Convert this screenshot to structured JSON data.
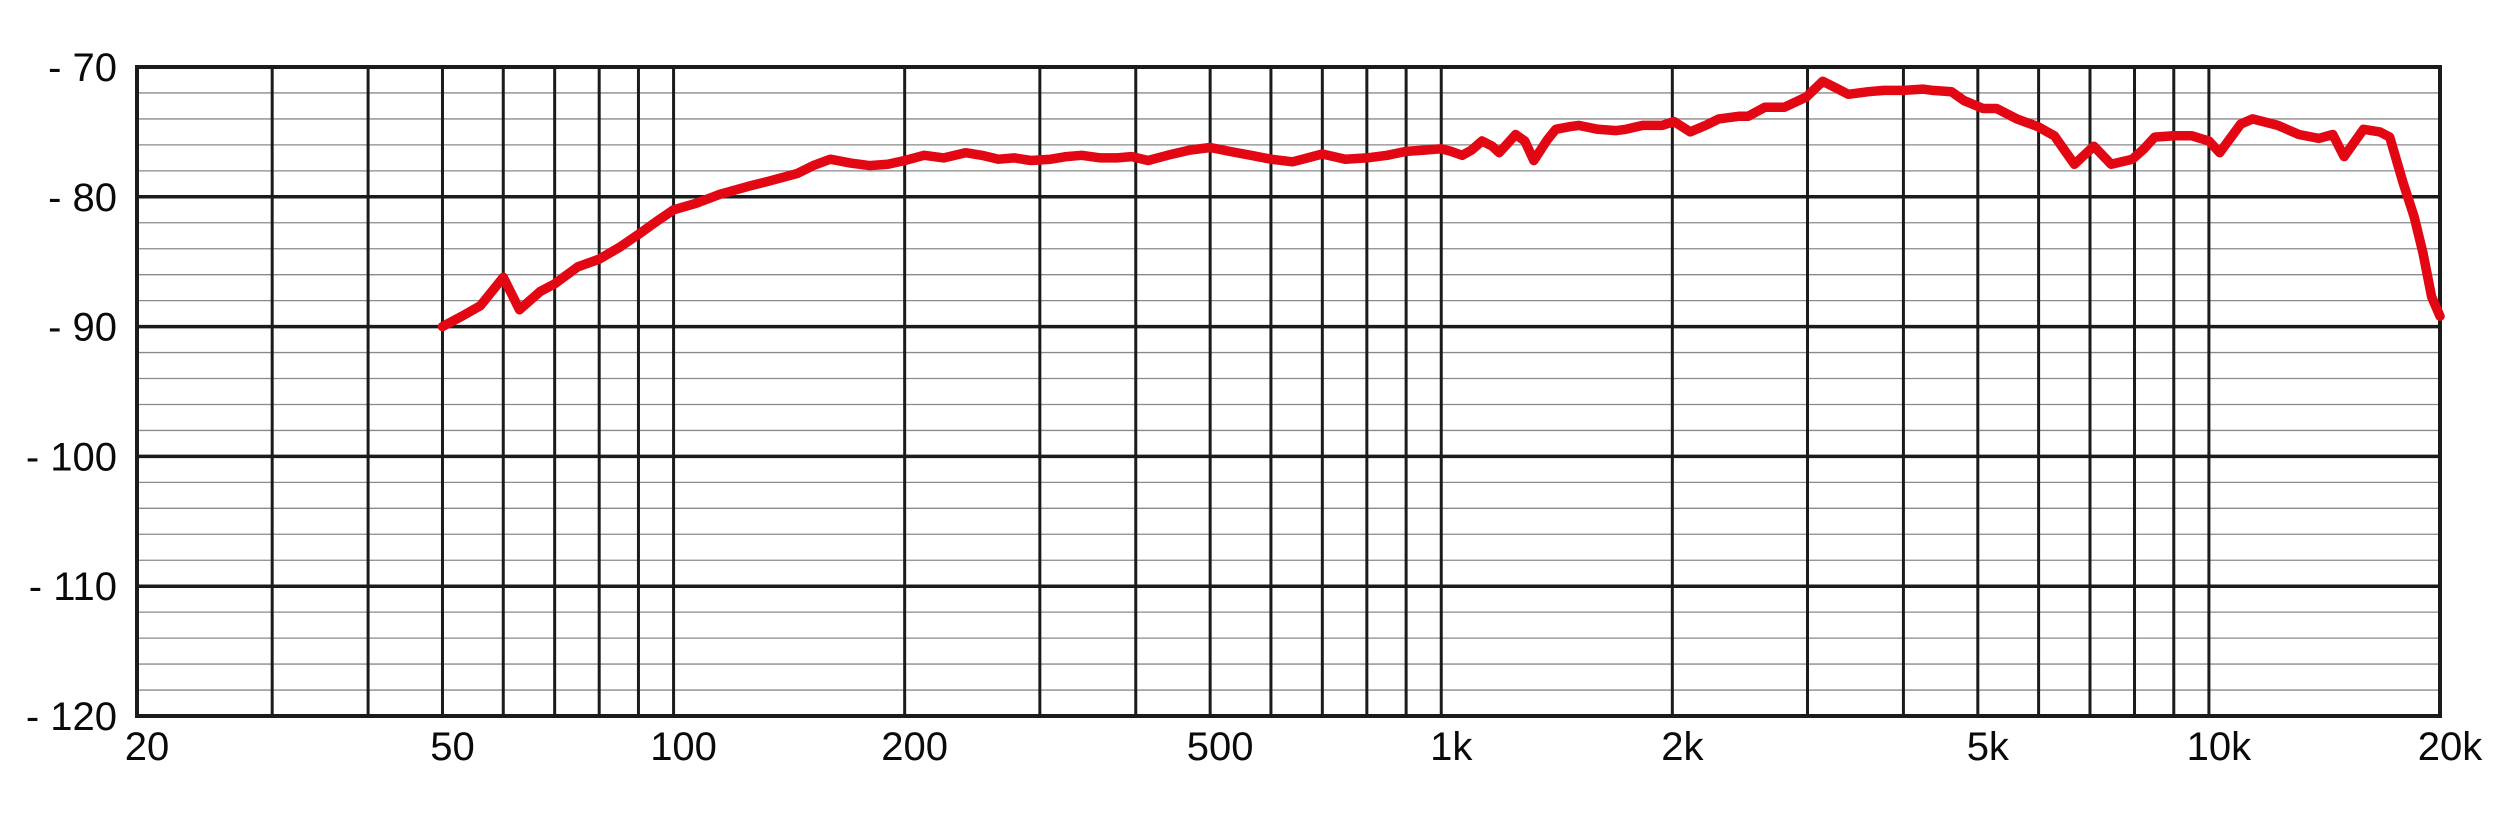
{
  "chart_data": {
    "type": "line",
    "title": "",
    "grid": "on",
    "legend": "none",
    "colors": {
      "background": "#ffffff",
      "curve": "#e30613",
      "grid_major": "#1b1b1b",
      "grid_minor": "#8a8a8a",
      "border": "#1b1b1b",
      "text": "#0a0a0a"
    },
    "x_axis": {
      "scale": "log",
      "min": 20,
      "max": 20000,
      "gridlines": [
        30,
        40,
        50,
        60,
        70,
        80,
        90,
        100,
        200,
        300,
        400,
        500,
        600,
        700,
        800,
        900,
        1000,
        2000,
        3000,
        4000,
        5000,
        6000,
        7000,
        8000,
        9000,
        10000
      ],
      "labeled_ticks": [
        {
          "value": 20,
          "label": "20"
        },
        {
          "value": 50,
          "label": "50"
        },
        {
          "value": 100,
          "label": "100"
        },
        {
          "value": 200,
          "label": "200"
        },
        {
          "value": 500,
          "label": "500"
        },
        {
          "value": 1000,
          "label": "1k"
        },
        {
          "value": 2000,
          "label": "2k"
        },
        {
          "value": 5000,
          "label": "5k"
        },
        {
          "value": 10000,
          "label": "10k"
        },
        {
          "value": 20000,
          "label": "20k"
        }
      ]
    },
    "y_axis": {
      "min": -120,
      "max": -70,
      "major_step": 10,
      "minor_step": 2,
      "labeled_ticks": [
        {
          "value": -70,
          "label": "- 70"
        },
        {
          "value": -80,
          "label": "- 80"
        },
        {
          "value": -90,
          "label": "- 90"
        },
        {
          "value": -100,
          "label": "- 100"
        },
        {
          "value": -110,
          "label": "- 110"
        },
        {
          "value": -120,
          "label": "- 120"
        }
      ]
    },
    "series": [
      {
        "name": "frequency-response",
        "color": "#e30613",
        "stroke_width": 9.5,
        "points": [
          [
            50,
            -90.0
          ],
          [
            53,
            -89.2
          ],
          [
            56,
            -88.4
          ],
          [
            60,
            -86.2
          ],
          [
            63,
            -88.7
          ],
          [
            67,
            -87.3
          ],
          [
            70,
            -86.7
          ],
          [
            75,
            -85.4
          ],
          [
            80,
            -84.8
          ],
          [
            85,
            -83.9
          ],
          [
            90,
            -82.9
          ],
          [
            95,
            -81.9
          ],
          [
            100,
            -81.0
          ],
          [
            107,
            -80.5
          ],
          [
            115,
            -79.8
          ],
          [
            125,
            -79.2
          ],
          [
            133,
            -78.8
          ],
          [
            145,
            -78.2
          ],
          [
            152,
            -77.6
          ],
          [
            160,
            -77.1
          ],
          [
            170,
            -77.4
          ],
          [
            180,
            -77.6
          ],
          [
            190,
            -77.5
          ],
          [
            200,
            -77.2
          ],
          [
            212,
            -76.8
          ],
          [
            225,
            -77.0
          ],
          [
            240,
            -76.6
          ],
          [
            252,
            -76.8
          ],
          [
            265,
            -77.1
          ],
          [
            278,
            -77.0
          ],
          [
            292,
            -77.2
          ],
          [
            310,
            -77.1
          ],
          [
            325,
            -76.9
          ],
          [
            340,
            -76.8
          ],
          [
            360,
            -77.0
          ],
          [
            378,
            -77.0
          ],
          [
            395,
            -76.9
          ],
          [
            415,
            -77.2
          ],
          [
            440,
            -76.8
          ],
          [
            470,
            -76.4
          ],
          [
            500,
            -76.2
          ],
          [
            530,
            -76.5
          ],
          [
            565,
            -76.8
          ],
          [
            600,
            -77.1
          ],
          [
            640,
            -77.3
          ],
          [
            670,
            -77.0
          ],
          [
            700,
            -76.7
          ],
          [
            750,
            -77.1
          ],
          [
            800,
            -77.0
          ],
          [
            850,
            -76.8
          ],
          [
            900,
            -76.5
          ],
          [
            950,
            -76.4
          ],
          [
            1000,
            -76.3
          ],
          [
            1030,
            -76.5
          ],
          [
            1065,
            -76.8
          ],
          [
            1095,
            -76.4
          ],
          [
            1130,
            -75.7
          ],
          [
            1165,
            -76.1
          ],
          [
            1190,
            -76.6
          ],
          [
            1220,
            -75.9
          ],
          [
            1250,
            -75.2
          ],
          [
            1285,
            -75.7
          ],
          [
            1320,
            -77.2
          ],
          [
            1375,
            -75.6
          ],
          [
            1410,
            -74.8
          ],
          [
            1470,
            -74.6
          ],
          [
            1510,
            -74.5
          ],
          [
            1600,
            -74.8
          ],
          [
            1690,
            -74.9
          ],
          [
            1740,
            -74.8
          ],
          [
            1830,
            -74.5
          ],
          [
            1940,
            -74.5
          ],
          [
            2010,
            -74.2
          ],
          [
            2110,
            -75.0
          ],
          [
            2210,
            -74.5
          ],
          [
            2300,
            -74.0
          ],
          [
            2440,
            -73.8
          ],
          [
            2510,
            -73.8
          ],
          [
            2640,
            -73.1
          ],
          [
            2800,
            -73.1
          ],
          [
            2990,
            -72.3
          ],
          [
            3140,
            -71.1
          ],
          [
            3290,
            -71.7
          ],
          [
            3390,
            -72.1
          ],
          [
            3600,
            -71.9
          ],
          [
            3770,
            -71.8
          ],
          [
            4000,
            -71.8
          ],
          [
            4240,
            -71.7
          ],
          [
            4370,
            -71.8
          ],
          [
            4620,
            -71.9
          ],
          [
            4800,
            -72.6
          ],
          [
            5080,
            -73.2
          ],
          [
            5290,
            -73.2
          ],
          [
            5620,
            -74.0
          ],
          [
            5990,
            -74.6
          ],
          [
            6290,
            -75.3
          ],
          [
            6680,
            -77.5
          ],
          [
            7080,
            -76.1
          ],
          [
            7460,
            -77.5
          ],
          [
            7950,
            -77.1
          ],
          [
            8230,
            -76.3
          ],
          [
            8500,
            -75.4
          ],
          [
            9000,
            -75.3
          ],
          [
            9500,
            -75.3
          ],
          [
            10000,
            -75.7
          ],
          [
            10330,
            -76.6
          ],
          [
            11000,
            -74.4
          ],
          [
            11400,
            -74.0
          ],
          [
            12300,
            -74.5
          ],
          [
            13100,
            -75.2
          ],
          [
            13900,
            -75.5
          ],
          [
            14500,
            -75.2
          ],
          [
            15000,
            -76.9
          ],
          [
            15900,
            -74.8
          ],
          [
            16700,
            -75.0
          ],
          [
            17200,
            -75.4
          ],
          [
            17900,
            -78.9
          ],
          [
            18500,
            -81.5
          ],
          [
            19000,
            -84.3
          ],
          [
            19500,
            -87.7
          ],
          [
            20000,
            -89.2
          ]
        ]
      }
    ]
  }
}
